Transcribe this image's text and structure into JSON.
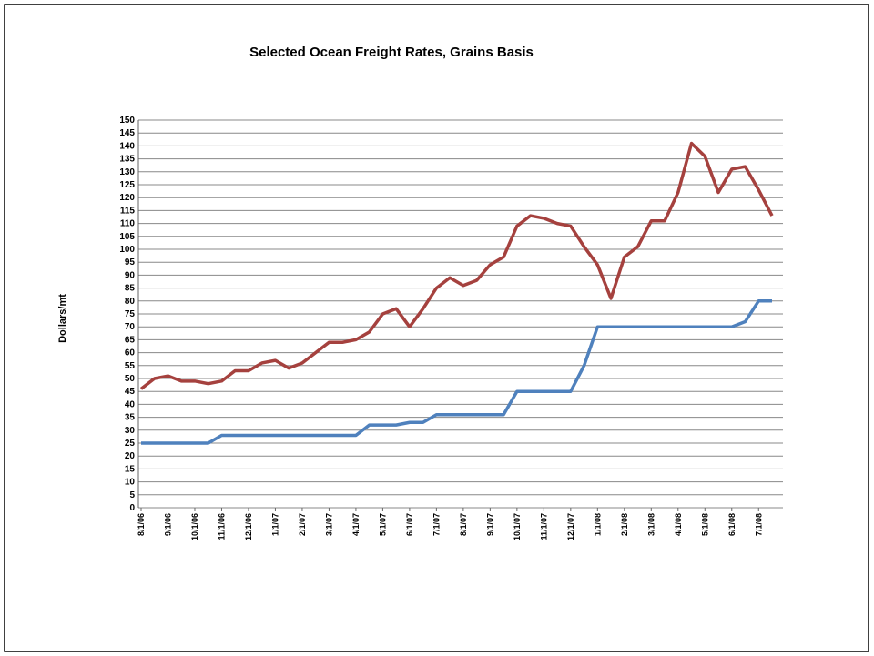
{
  "chart_data": {
    "type": "line",
    "title": "Selected Ocean Freight Rates, Grains Basis",
    "ylabel": "Dollars/mt",
    "categories": [
      "8/1/06",
      null,
      "9/1/06",
      null,
      "10/1/06",
      null,
      "11/1/06",
      null,
      "12/1/06",
      null,
      "1/1/07",
      null,
      "2/1/07",
      null,
      "3/1/07",
      null,
      "4/1/07",
      null,
      "5/1/07",
      null,
      "6/1/07",
      null,
      "7/1/07",
      null,
      "8/1/07",
      null,
      "9/1/07",
      null,
      "10/1/07",
      null,
      "11/1/07",
      null,
      "12/1/07",
      null,
      "1/1/08",
      null,
      "2/1/08",
      null,
      "3/1/08",
      null,
      "4/1/08",
      null,
      "5/1/08",
      null,
      "6/1/08",
      null,
      "7/1/08",
      null
    ],
    "series": [
      {
        "color": "#a5413e",
        "values": [
          46,
          50,
          51,
          49,
          49,
          48,
          49,
          53,
          53,
          56,
          57,
          54,
          56,
          60,
          64,
          64,
          65,
          68,
          75,
          77,
          70,
          77,
          85,
          89,
          86,
          88,
          94,
          97,
          109,
          113,
          112,
          110,
          109,
          101,
          94,
          81,
          97,
          101,
          111,
          111,
          122,
          141,
          136,
          122,
          131,
          132,
          123,
          113
        ]
      },
      {
        "color": "#4f81bd",
        "values": [
          25,
          25,
          25,
          25,
          25,
          25,
          28,
          28,
          28,
          28,
          28,
          28,
          28,
          28,
          28,
          28,
          28,
          32,
          32,
          32,
          33,
          33,
          36,
          36,
          36,
          36,
          36,
          36,
          45,
          45,
          45,
          45,
          45,
          55,
          70,
          70,
          70,
          70,
          70,
          70,
          70,
          70,
          70,
          70,
          70,
          72,
          80,
          80
        ]
      }
    ],
    "ylim": [
      0,
      150
    ],
    "yticks": [
      0,
      5,
      10,
      15,
      20,
      25,
      30,
      35,
      40,
      45,
      50,
      55,
      60,
      65,
      70,
      75,
      80,
      85,
      90,
      95,
      100,
      105,
      110,
      115,
      120,
      125,
      130,
      135,
      140,
      145,
      150
    ],
    "grid": true
  }
}
